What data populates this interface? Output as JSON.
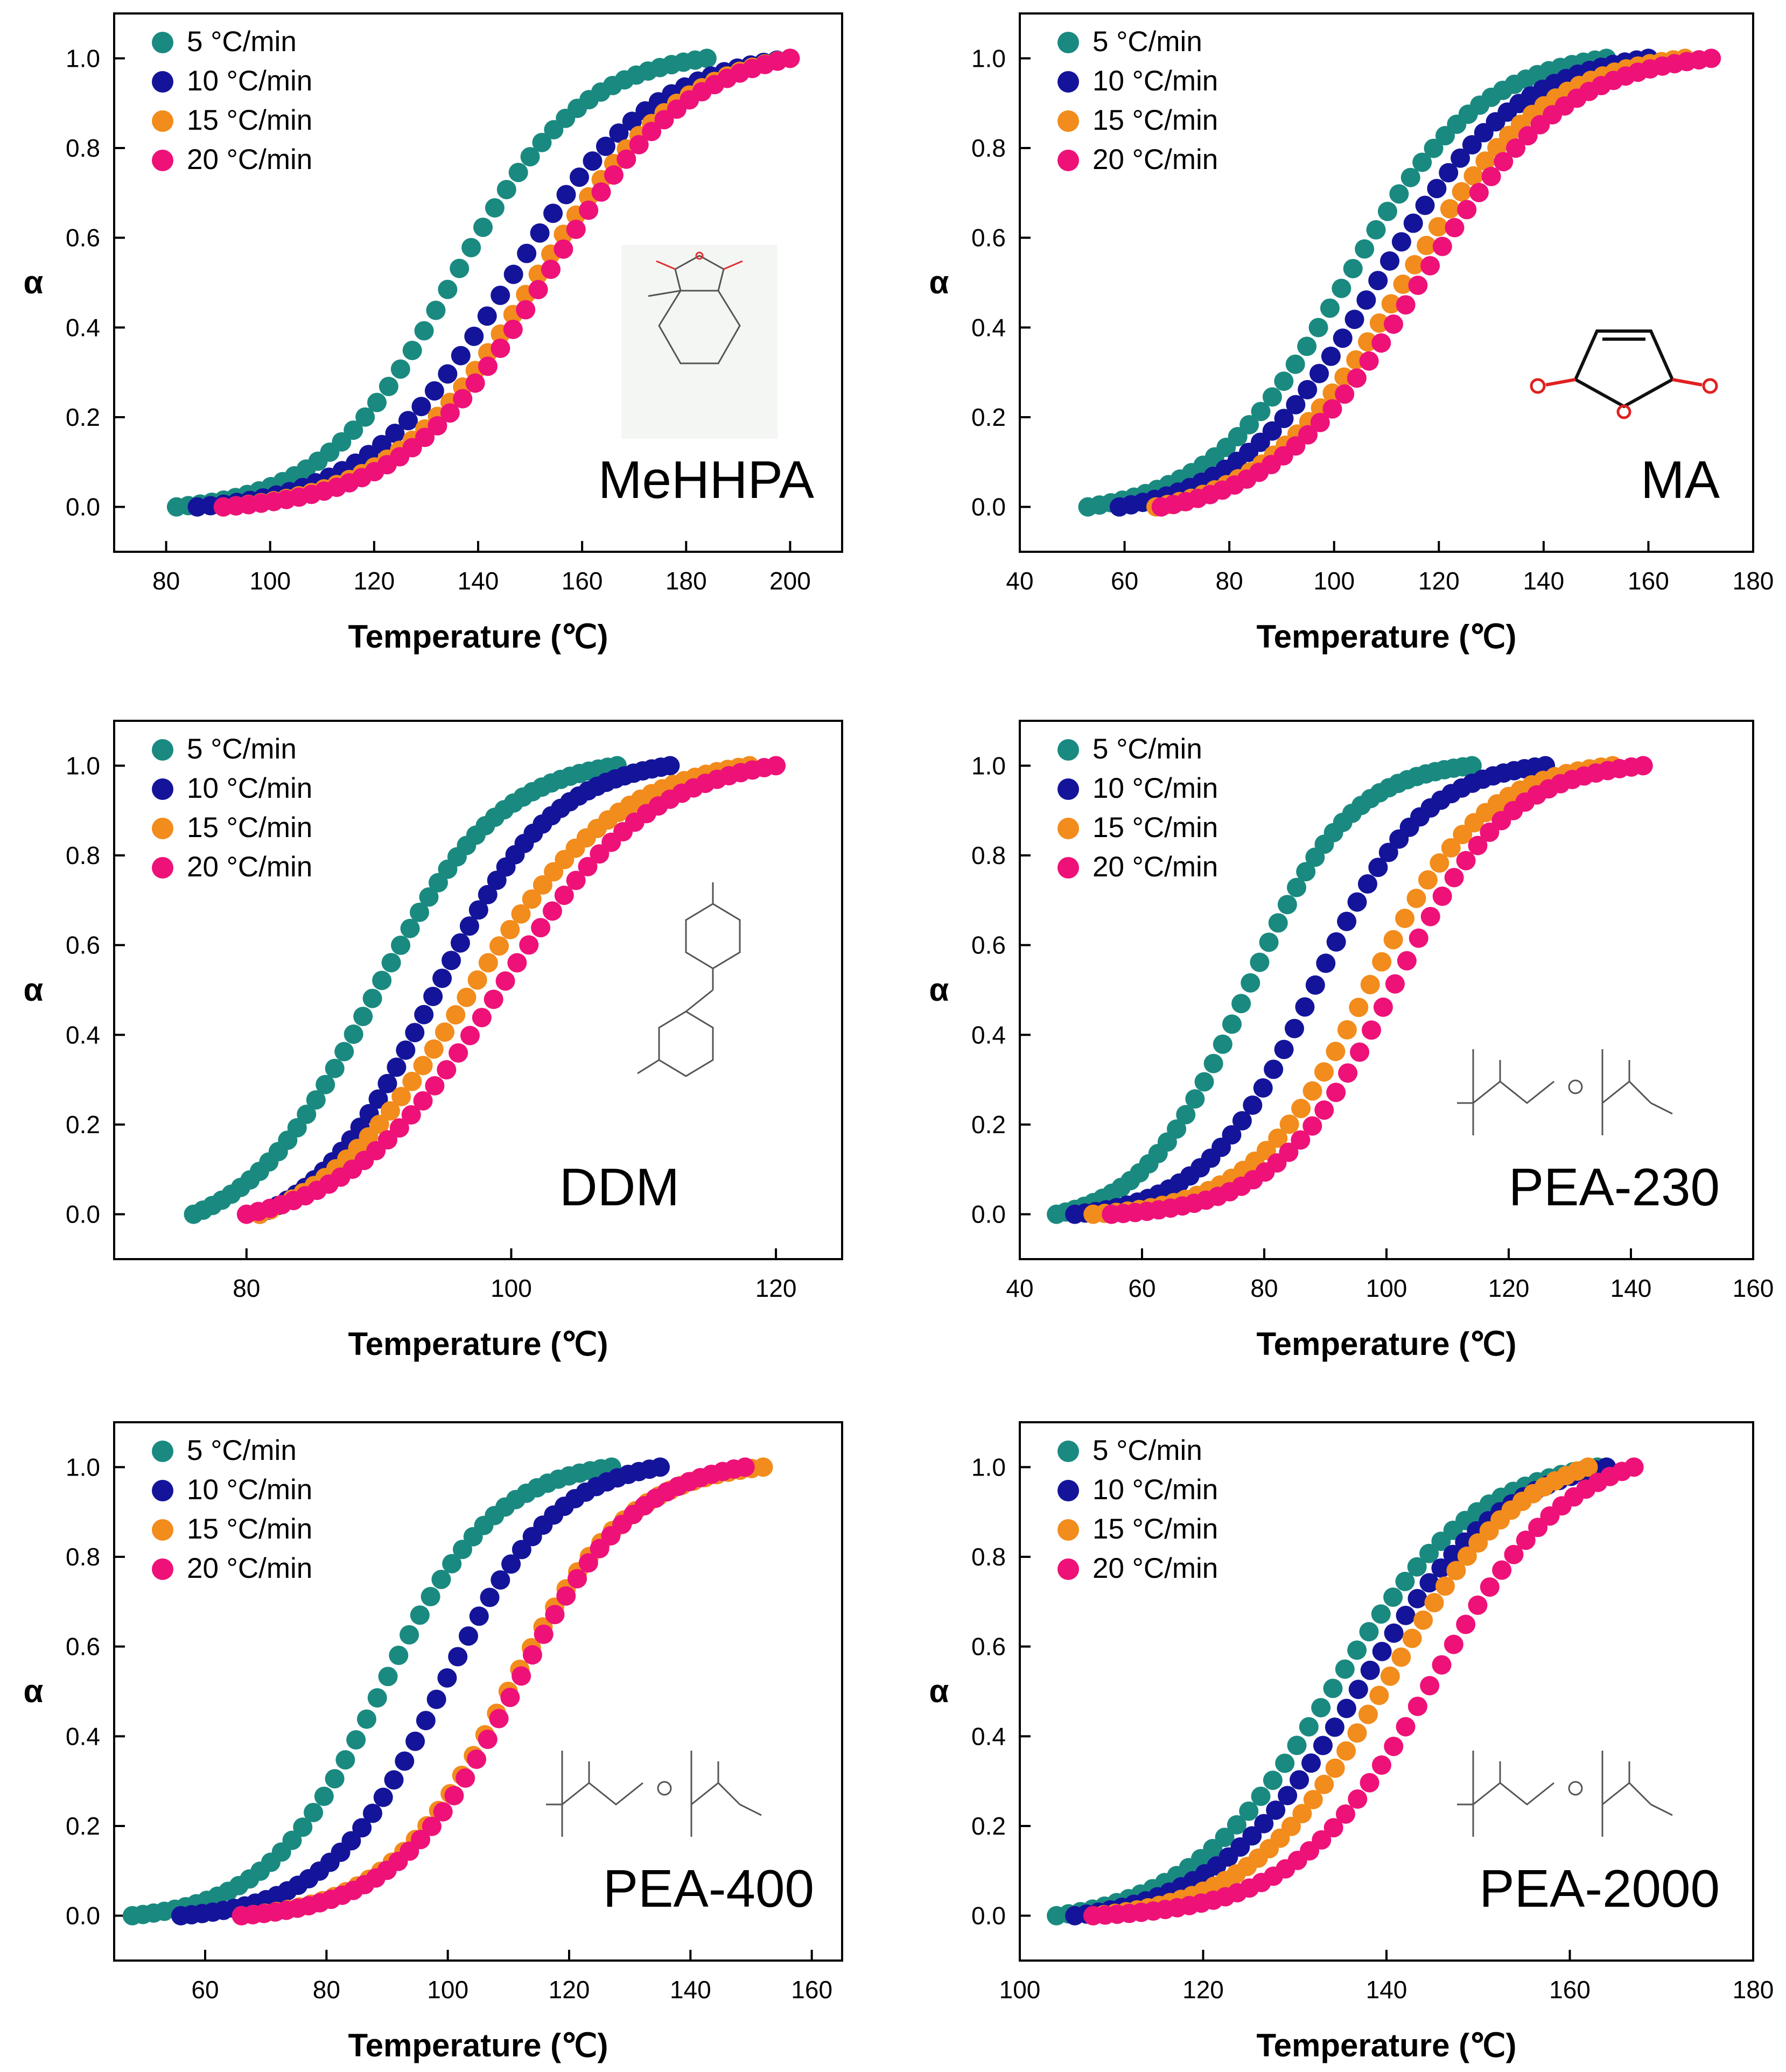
{
  "figure": {
    "description_colors": {
      "rate_5": "#1a8a80",
      "rate_10": "#14149a",
      "rate_15": "#f28c1c",
      "rate_20": "#ee1178"
    }
  },
  "chart_data": [
    {
      "type": "scatter",
      "label": "MeHHPA",
      "structure": "methylhexahydrophthalic-anhydride",
      "xlabel": "Temperature (℃)",
      "ylabel": "α",
      "xlim": [
        70,
        210
      ],
      "ylim": [
        -0.1,
        1.1
      ],
      "xticks": [
        80,
        100,
        120,
        140,
        160,
        180,
        200
      ],
      "yticks": [
        0.0,
        0.2,
        0.4,
        0.6,
        0.8,
        1.0
      ],
      "legend": [
        "5 °C/min",
        "10 °C/min",
        "15 °C/min",
        "20 °C/min"
      ],
      "series": [
        {
          "name": "5 °C/min",
          "color": "#1a8a80",
          "x_start": 82,
          "x_end": 184,
          "t_half": 135,
          "width": 12.5
        },
        {
          "name": "10 °C/min",
          "color": "#14149a",
          "x_start": 86,
          "x_end": 200,
          "t_half": 146,
          "width": 14
        },
        {
          "name": "15 °C/min",
          "color": "#f28c1c",
          "x_start": 91,
          "x_end": 200,
          "t_half": 151,
          "width": 14
        },
        {
          "name": "20 °C/min",
          "color": "#ee1178",
          "x_start": 91,
          "x_end": 200,
          "t_half": 153,
          "width": 14
        }
      ]
    },
    {
      "type": "scatter",
      "label": "MA",
      "structure": "maleic-anhydride",
      "xlabel": "Temperature (℃)",
      "ylabel": "α",
      "xlim": [
        40,
        180
      ],
      "ylim": [
        -0.1,
        1.1
      ],
      "xticks": [
        40,
        60,
        80,
        100,
        120,
        140,
        160,
        180
      ],
      "yticks": [
        0.0,
        0.2,
        0.4,
        0.6,
        0.8,
        1.0
      ],
      "legend": [
        "5 °C/min",
        "10 °C/min",
        "15 °C/min",
        "20 °C/min"
      ],
      "series": [
        {
          "name": "5 °C/min",
          "color": "#1a8a80",
          "x_start": 53,
          "x_end": 152,
          "t_half": 102,
          "width": 13
        },
        {
          "name": "10 °C/min",
          "color": "#14149a",
          "x_start": 59,
          "x_end": 160,
          "t_half": 108,
          "width": 13.5
        },
        {
          "name": "15 °C/min",
          "color": "#f28c1c",
          "x_start": 66,
          "x_end": 167,
          "t_half": 113,
          "width": 13.5
        },
        {
          "name": "20 °C/min",
          "color": "#ee1178",
          "x_start": 67,
          "x_end": 172,
          "t_half": 116,
          "width": 14
        }
      ]
    },
    {
      "type": "scatter",
      "label": "DDM",
      "structure": "4,4'-diaminodiphenylmethane",
      "xlabel": "Temperature (℃)",
      "ylabel": "α",
      "xlim": [
        70,
        125
      ],
      "ylim": [
        -0.1,
        1.1
      ],
      "xticks": [
        80,
        100,
        120
      ],
      "yticks": [
        0.0,
        0.2,
        0.4,
        0.6,
        0.8,
        1.0
      ],
      "legend": [
        "5 °C/min",
        "10 °C/min",
        "15 °C/min",
        "20 °C/min"
      ],
      "series": [
        {
          "name": "5 °C/min",
          "color": "#1a8a80",
          "x_start": 76,
          "x_end": 108,
          "t_half": 89.5,
          "width": 4.8
        },
        {
          "name": "10 °C/min",
          "color": "#14149a",
          "x_start": 81,
          "x_end": 112,
          "t_half": 94,
          "width": 4.6
        },
        {
          "name": "15 °C/min",
          "color": "#f28c1c",
          "x_start": 81,
          "x_end": 118,
          "t_half": 96.5,
          "width": 5.8
        },
        {
          "name": "20 °C/min",
          "color": "#ee1178",
          "x_start": 80,
          "x_end": 120,
          "t_half": 99,
          "width": 5.8
        }
      ]
    },
    {
      "type": "scatter",
      "label": "PEA-230",
      "structure": "polyetheramine",
      "xlabel": "Temperature (℃)",
      "ylabel": "α",
      "xlim": [
        40,
        160
      ],
      "ylim": [
        -0.1,
        1.1
      ],
      "xticks": [
        40,
        60,
        80,
        100,
        120,
        140,
        160
      ],
      "yticks": [
        0.0,
        0.2,
        0.4,
        0.6,
        0.8,
        1.0
      ],
      "legend": [
        "5 °C/min",
        "10 °C/min",
        "15 °C/min",
        "20 °C/min"
      ],
      "series": [
        {
          "name": "5 °C/min",
          "color": "#1a8a80",
          "x_start": 46,
          "x_end": 114,
          "t_half": 77,
          "width": 8.5
        },
        {
          "name": "10 °C/min",
          "color": "#14149a",
          "x_start": 49,
          "x_end": 126,
          "t_half": 88,
          "width": 9
        },
        {
          "name": "15 °C/min",
          "color": "#f28c1c",
          "x_start": 52,
          "x_end": 137,
          "t_half": 97,
          "width": 9.5
        },
        {
          "name": "20 °C/min",
          "color": "#ee1178",
          "x_start": 55,
          "x_end": 142,
          "t_half": 101,
          "width": 9.5
        }
      ]
    },
    {
      "type": "scatter",
      "label": "PEA-400",
      "structure": "polyetheramine",
      "xlabel": "Temperature (℃)",
      "ylabel": "α",
      "xlim": [
        45,
        165
      ],
      "ylim": [
        -0.1,
        1.1
      ],
      "xticks": [
        60,
        80,
        100,
        120,
        140,
        160
      ],
      "yticks": [
        0.0,
        0.2,
        0.4,
        0.6,
        0.8,
        1.0
      ],
      "legend": [
        "5 °C/min",
        "10 °C/min",
        "15 °C/min",
        "20 °C/min"
      ],
      "series": [
        {
          "name": "5 °C/min",
          "color": "#1a8a80",
          "x_start": 48,
          "x_end": 127,
          "t_half": 89,
          "width": 9.5
        },
        {
          "name": "10 °C/min",
          "color": "#14149a",
          "x_start": 56,
          "x_end": 135,
          "t_half": 99,
          "width": 9.5
        },
        {
          "name": "15 °C/min",
          "color": "#f28c1c",
          "x_start": 66,
          "x_end": 152,
          "t_half": 110,
          "width": 10
        },
        {
          "name": "20 °C/min",
          "color": "#ee1178",
          "x_start": 66,
          "x_end": 149,
          "t_half": 111,
          "width": 10
        }
      ]
    },
    {
      "type": "scatter",
      "label": "PEA-2000",
      "structure": "polyetheramine",
      "xlabel": "Temperature (℃)",
      "ylabel": "α",
      "xlim": [
        100,
        180
      ],
      "ylim": [
        -0.1,
        1.1
      ],
      "xticks": [
        100,
        120,
        140,
        160,
        180
      ],
      "yticks": [
        0.0,
        0.2,
        0.4,
        0.6,
        0.8,
        1.0
      ],
      "legend": [
        "5 °C/min",
        "10 °C/min",
        "15 °C/min",
        "20 °C/min"
      ],
      "series": [
        {
          "name": "5 °C/min",
          "color": "#1a8a80",
          "x_start": 104,
          "x_end": 163,
          "t_half": 134,
          "width": 8
        },
        {
          "name": "10 °C/min",
          "color": "#14149a",
          "x_start": 106,
          "x_end": 164,
          "t_half": 137,
          "width": 8
        },
        {
          "name": "15 °C/min",
          "color": "#f28c1c",
          "x_start": 108,
          "x_end": 162,
          "t_half": 140,
          "width": 7.5
        },
        {
          "name": "20 °C/min",
          "color": "#ee1178",
          "x_start": 108,
          "x_end": 167,
          "t_half": 145,
          "width": 7.5
        }
      ]
    }
  ]
}
